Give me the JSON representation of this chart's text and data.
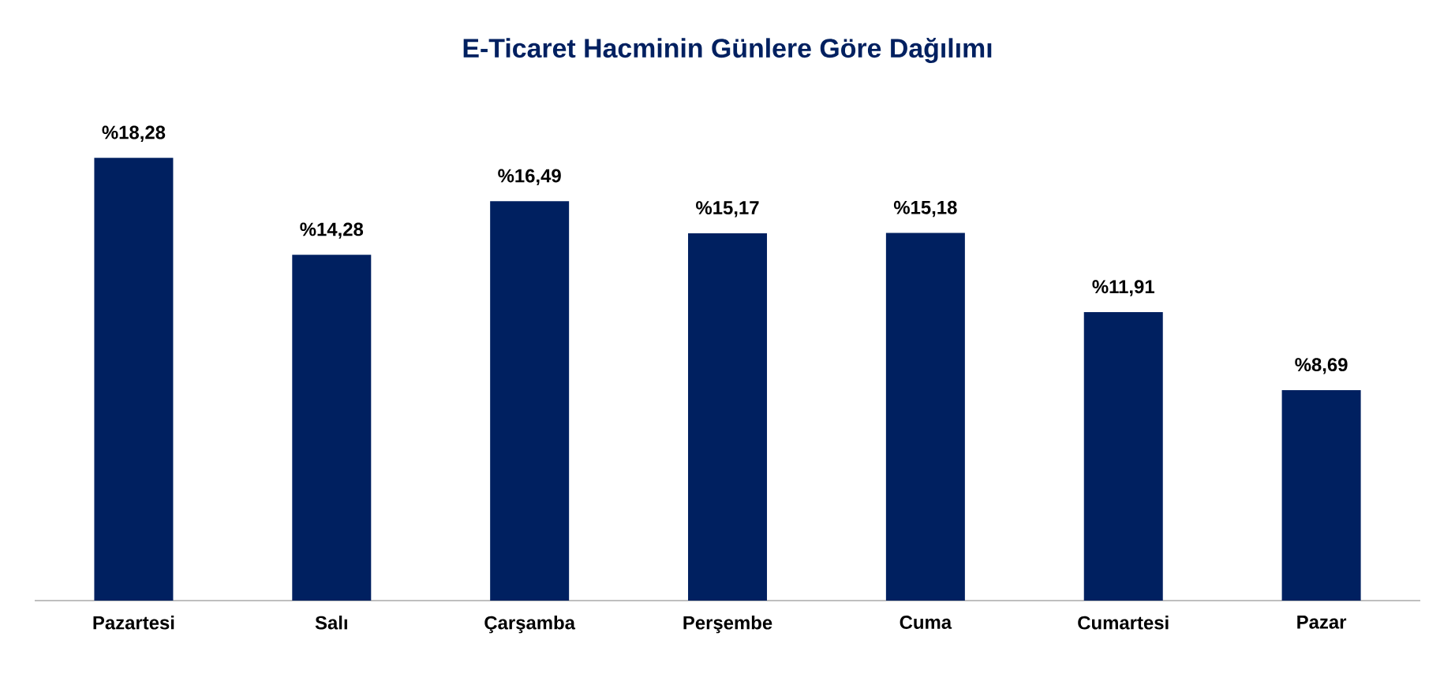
{
  "chart_data": {
    "type": "bar",
    "title": "E-Ticaret Hacminin Günlere Göre Dağılımı",
    "categories": [
      "Pazartesi",
      "Salı",
      "Çarşamba",
      "Perşembe",
      "Cuma",
      "Cumartesi",
      "Pazar"
    ],
    "values": [
      18.28,
      14.28,
      16.49,
      15.17,
      15.18,
      11.91,
      8.69
    ],
    "value_labels": [
      "%18,28",
      "%14,28",
      "%16,49",
      "%15,17",
      "%15,18",
      "%11,91",
      "%8,69"
    ],
    "color": "#002060"
  }
}
